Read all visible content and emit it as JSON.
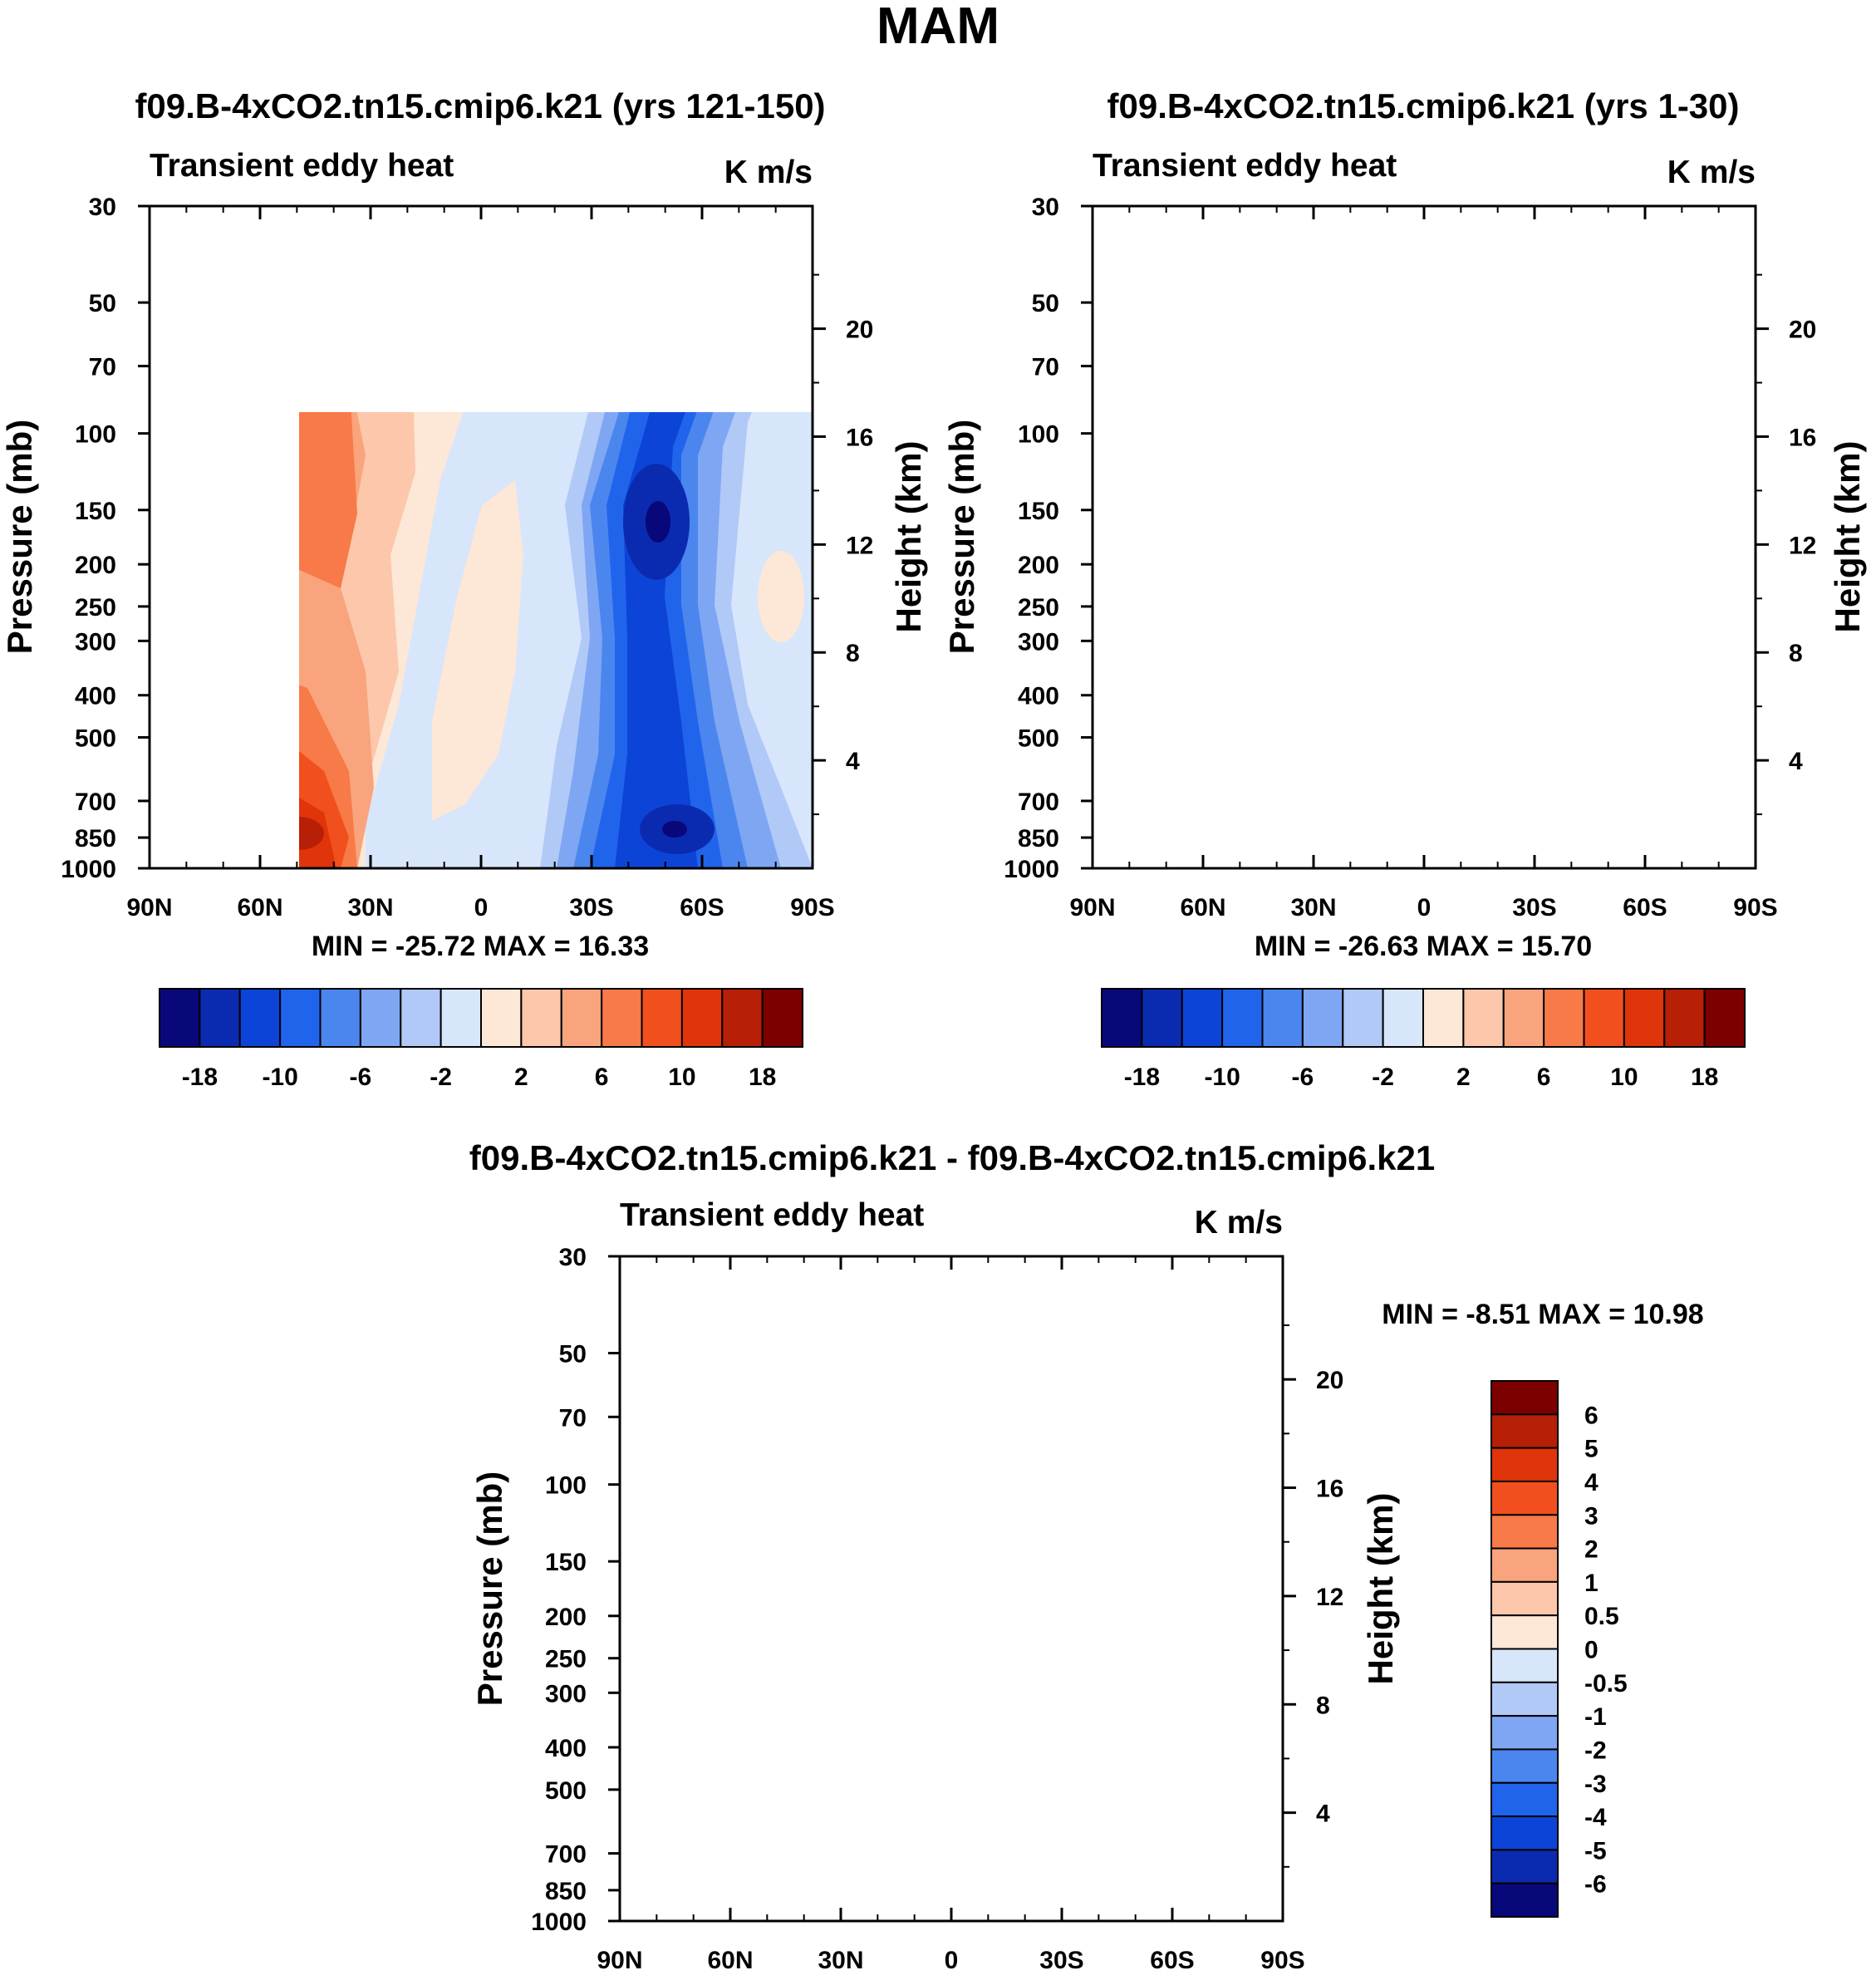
{
  "figure_title": "MAM",
  "colors": {
    "scale15": [
      "#08087a",
      "#0a2bb0",
      "#0d44d8",
      "#2164ec",
      "#4b86ef",
      "#7ea6f3",
      "#b0c9f7",
      "#d7e6fb",
      "#fde7d6",
      "#fcc7ab",
      "#f9a47c",
      "#f77a48",
      "#f24f1e",
      "#e0340b",
      "#b71f06",
      "#7d0000"
    ],
    "scale13": [
      "#08087a",
      "#0a2bb0",
      "#0d44d8",
      "#2164ec",
      "#4b86ef",
      "#7ea6f3",
      "#d7e6fb",
      "#fde7d6",
      "#fcc7ab",
      "#f9a47c",
      "#f77a48",
      "#f24f1e",
      "#e0340b",
      "#b71f06",
      "#7d0000"
    ]
  },
  "chart_data": [
    {
      "id": "panel-a",
      "type": "contour",
      "title": "f09.B-4xCO2.tn15.cmip6.k21 (yrs 121-150)",
      "left_label": "Transient eddy heat",
      "units": "K m/s",
      "ylabel": "Pressure (mb)",
      "ylabel_right": "Height (km)",
      "x_ticks": [
        "90N",
        "60N",
        "30N",
        "0",
        "30S",
        "60S",
        "90S"
      ],
      "y_ticks": [
        "30",
        "50",
        "70",
        "100",
        "150",
        "200",
        "250",
        "300",
        "400",
        "500",
        "700",
        "850",
        "1000"
      ],
      "y_ticks_right": [
        "20",
        "16",
        "12",
        "8",
        "4"
      ],
      "stats": "MIN = -25.72  MAX =  16.33",
      "min": -25.72,
      "max": 16.33,
      "colorbar_labels": [
        "-18",
        "-10",
        "-6",
        "-2",
        "2",
        "6",
        "10",
        "18"
      ]
    },
    {
      "id": "panel-b",
      "type": "contour",
      "title": "f09.B-4xCO2.tn15.cmip6.k21 (yrs 1-30)",
      "left_label": "Transient eddy heat",
      "units": "K m/s",
      "ylabel": "Pressure (mb)",
      "ylabel_right": "Height (km)",
      "x_ticks": [
        "90N",
        "60N",
        "30N",
        "0",
        "30S",
        "60S",
        "90S"
      ],
      "y_ticks": [
        "30",
        "50",
        "70",
        "100",
        "150",
        "200",
        "250",
        "300",
        "400",
        "500",
        "700",
        "850",
        "1000"
      ],
      "y_ticks_right": [
        "20",
        "16",
        "12",
        "8",
        "4"
      ],
      "stats": "MIN = -26.63  MAX =  15.70",
      "min": -26.63,
      "max": 15.7,
      "colorbar_labels": [
        "-18",
        "-10",
        "-6",
        "-2",
        "2",
        "6",
        "10",
        "18"
      ]
    },
    {
      "id": "panel-diff",
      "type": "contour",
      "title": "f09.B-4xCO2.tn15.cmip6.k21 - f09.B-4xCO2.tn15.cmip6.k21",
      "left_label": "Transient eddy heat",
      "units": "K m/s",
      "ylabel": "Pressure (mb)",
      "ylabel_right": "Height (km)",
      "x_ticks": [
        "90N",
        "60N",
        "30N",
        "0",
        "30S",
        "60S",
        "90S"
      ],
      "y_ticks": [
        "30",
        "50",
        "70",
        "100",
        "150",
        "200",
        "250",
        "300",
        "400",
        "500",
        "700",
        "850",
        "1000"
      ],
      "y_ticks_right": [
        "20",
        "16",
        "12",
        "8",
        "4"
      ],
      "stats": "MIN =  -8.51  MAX =  10.98",
      "min": -8.51,
      "max": 10.98,
      "colorbar_labels": [
        "6",
        "5",
        "4",
        "3",
        "2",
        "1",
        "0.5",
        "0",
        "-0.5",
        "-1",
        "-2",
        "-3",
        "-4",
        "-5",
        "-6"
      ]
    }
  ]
}
